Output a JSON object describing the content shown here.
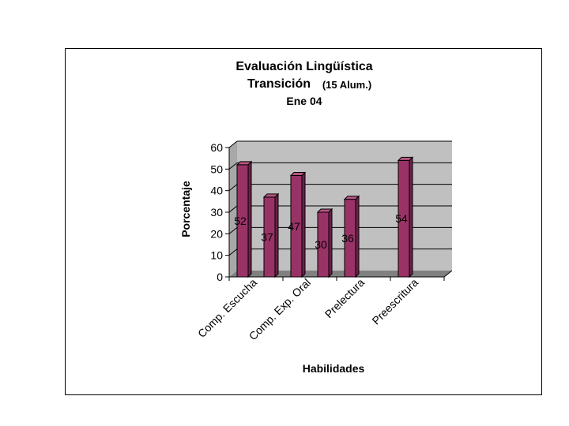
{
  "chart_data": {
    "type": "bar",
    "title_lines": [
      "Evaluación Lingüística",
      "Transición",
      "(15 Alum.)",
      "Ene 04"
    ],
    "xlabel": "Habilidades",
    "ylabel": "Porcentaje",
    "ylim": [
      0,
      60
    ],
    "yticks": [
      0,
      10,
      20,
      30,
      40,
      50,
      60
    ],
    "grid": true,
    "legend": "none",
    "bar_color": "#993366",
    "wall_color": "#c0c0c0",
    "x_tick_labels": [
      "Comp. Escucha",
      "Comp. Exp. Oral",
      "Prelectura",
      "Preescritura"
    ],
    "values": [
      52,
      37,
      47,
      30,
      36,
      null,
      54,
      null
    ],
    "data_labels": [
      "52",
      "37",
      "47",
      "30",
      "36",
      "",
      "54",
      ""
    ]
  }
}
